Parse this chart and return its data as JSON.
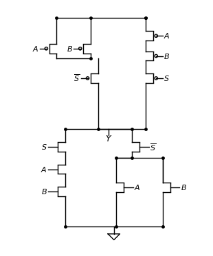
{
  "bg_color": "#ffffff",
  "line_color": "#000000",
  "figsize": [
    3.1,
    3.73
  ],
  "dpi": 100,
  "xlim": [
    0,
    10
  ],
  "ylim": [
    0,
    12
  ]
}
